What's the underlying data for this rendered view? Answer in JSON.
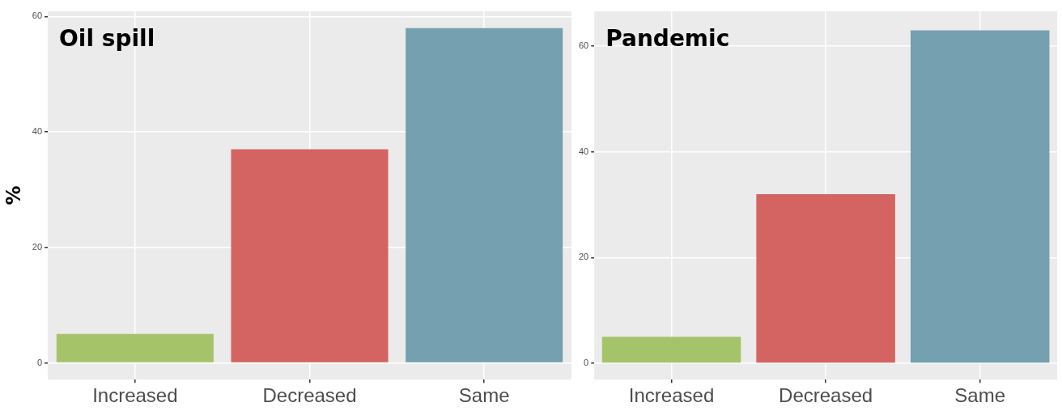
{
  "chart_data": [
    {
      "type": "bar",
      "title": "Oil spill",
      "ylabel": "%",
      "categories": [
        "Increased",
        "Decreased",
        "Same"
      ],
      "values": [
        5,
        37,
        58
      ],
      "colors": [
        "#a5c46a",
        "#d46461",
        "#75a0b0"
      ],
      "ylim": [
        -2.9,
        60.9
      ],
      "yticks": [
        0,
        20,
        40,
        60
      ],
      "grid": true,
      "legend": false
    },
    {
      "type": "bar",
      "title": "Pandemic",
      "categories": [
        "Increased",
        "Decreased",
        "Same"
      ],
      "values": [
        5,
        32,
        63
      ],
      "colors": [
        "#a5c46a",
        "#d46461",
        "#75a0b0"
      ],
      "ylim": [
        -3.1,
        66.6
      ],
      "yticks": [
        0,
        20,
        40,
        60
      ],
      "grid": true,
      "legend": false
    }
  ]
}
